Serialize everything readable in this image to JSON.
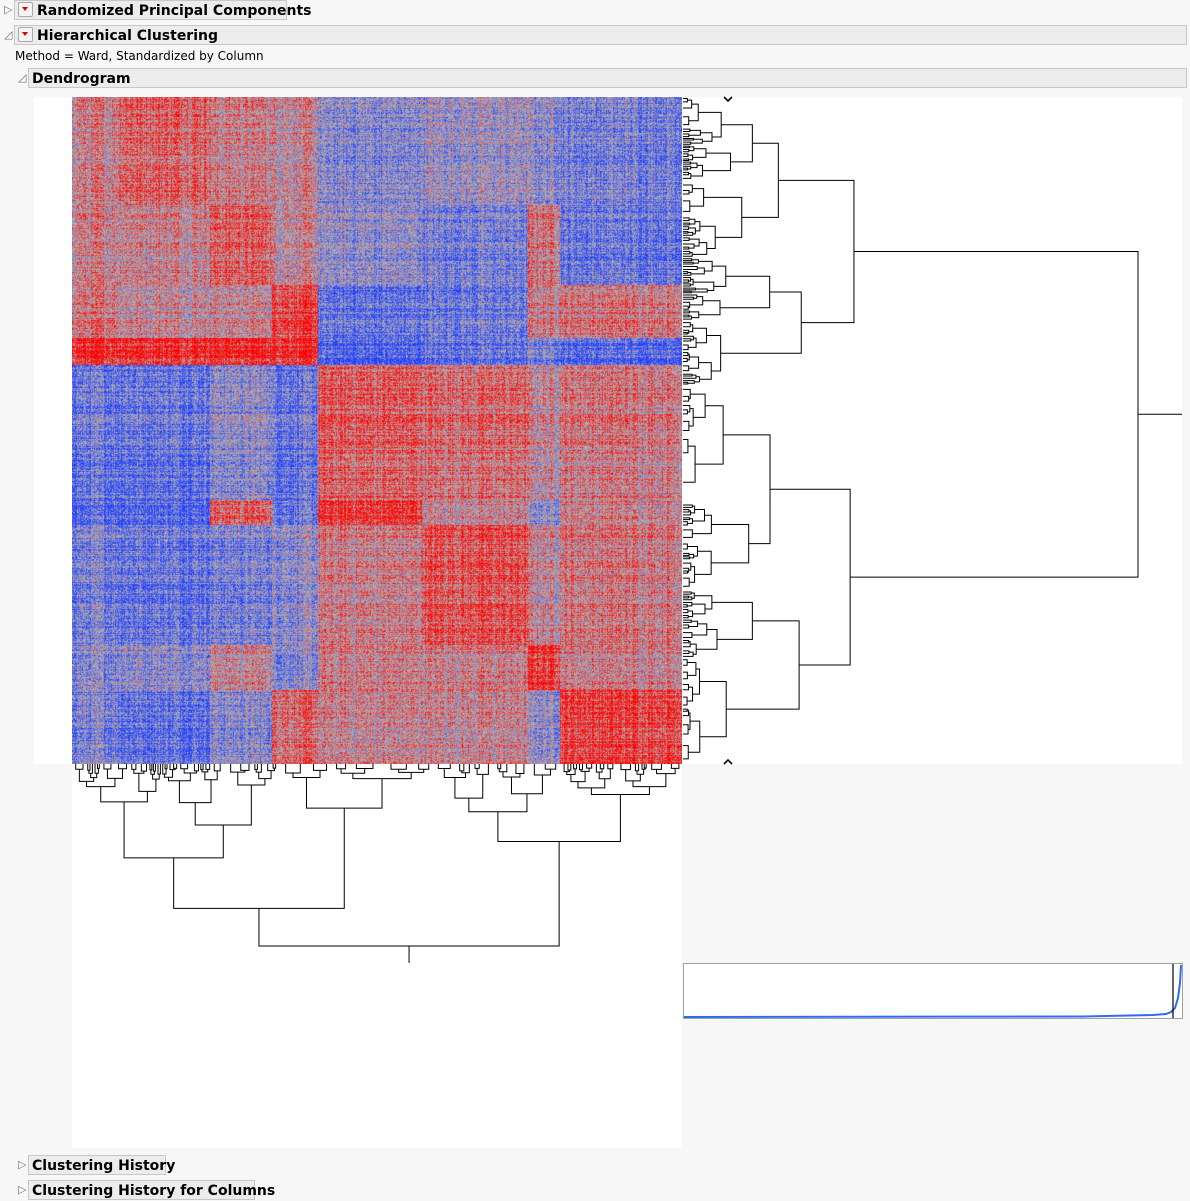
{
  "sections": {
    "rpc": {
      "title": "Randomized Principal Components",
      "expanded": false
    },
    "hc": {
      "title": "Hierarchical Clustering",
      "expanded": true,
      "method_text": "Method = Ward, Standardized by Column"
    },
    "dendrogram": {
      "title": "Dendrogram",
      "expanded": true
    },
    "history": {
      "title": "Clustering History",
      "expanded": false
    },
    "history_cols": {
      "title": "Clustering History for Columns",
      "expanded": false
    }
  },
  "colors": {
    "high": "#ff0000",
    "mid": "#b4b4b4",
    "low": "#1e3cff",
    "distance_curve": "#2f6bf0"
  },
  "icons": {
    "disclosure_collapsed": "triangle-right-icon",
    "disclosure_expanded": "triangle-down-icon",
    "menu": "red-triangle-menu-icon",
    "row_marker_top": "chevron-down-icon",
    "row_marker_bottom": "chevron-up-icon"
  }
}
